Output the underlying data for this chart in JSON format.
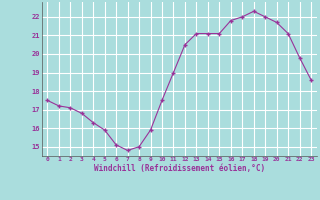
{
  "x": [
    0,
    1,
    2,
    3,
    4,
    5,
    6,
    7,
    8,
    9,
    10,
    11,
    12,
    13,
    14,
    15,
    16,
    17,
    18,
    19,
    20,
    21,
    22,
    23
  ],
  "y": [
    17.5,
    17.2,
    17.1,
    16.8,
    16.3,
    15.9,
    15.1,
    14.8,
    15.0,
    15.9,
    17.5,
    19.0,
    20.5,
    21.1,
    21.1,
    21.1,
    21.8,
    22.0,
    22.3,
    22.0,
    21.7,
    21.1,
    19.8,
    18.6
  ],
  "line_color": "#993399",
  "marker_color": "#993399",
  "bg_color": "#aadddd",
  "grid_color": "#ffffff",
  "xlabel": "Windchill (Refroidissement éolien,°C)",
  "xlabel_color": "#993399",
  "tick_color": "#993399",
  "ylabel_ticks": [
    15,
    16,
    17,
    18,
    19,
    20,
    21,
    22
  ],
  "xlim": [
    -0.5,
    23.5
  ],
  "ylim": [
    14.5,
    22.8
  ],
  "font": "monospace"
}
